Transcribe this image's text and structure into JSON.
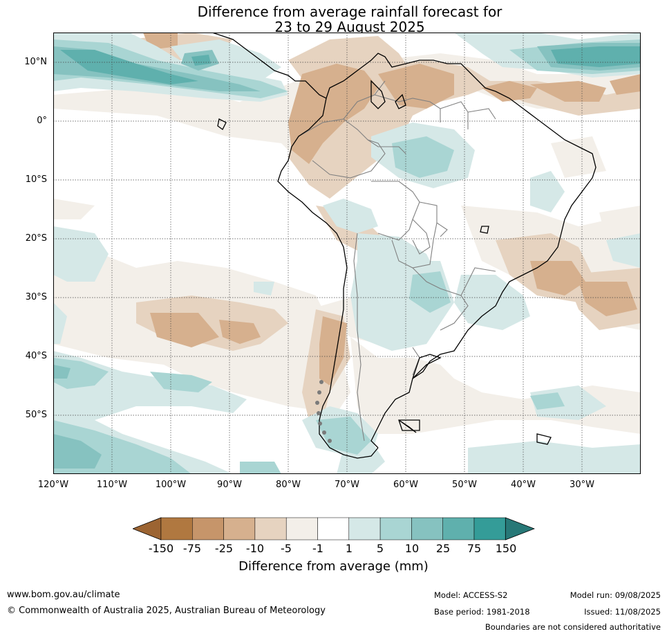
{
  "title": {
    "line1": "Difference from average rainfall forecast for",
    "line2": "23 to 29 August 2025"
  },
  "map": {
    "region": "South America",
    "projection": "equirectangular",
    "lon_range": [
      -120,
      -20
    ],
    "lat_range": [
      -60,
      15
    ],
    "gridlines": true,
    "lat_labels": [
      "10°N",
      "0°",
      "10°S",
      "20°S",
      "30°S",
      "40°S",
      "50°S"
    ],
    "lon_labels": [
      "120°W",
      "110°W",
      "100°W",
      "90°W",
      "80°W",
      "70°W",
      "60°W",
      "50°W",
      "40°W",
      "30°W"
    ]
  },
  "legend": {
    "title": "Difference from average (mm)",
    "tick_labels": [
      "-150",
      "-75",
      "-25",
      "-10",
      "-5",
      "-1",
      "1",
      "5",
      "10",
      "25",
      "75",
      "150"
    ],
    "colors": [
      "#9c6432",
      "#b07840",
      "#c6956a",
      "#d6b08e",
      "#e6d3c0",
      "#f3efe9",
      "#ffffff",
      "#d5e8e7",
      "#a9d5d3",
      "#86c2c0",
      "#5fb0ad",
      "#349c98",
      "#277877"
    ],
    "extend": "both"
  },
  "footer": {
    "website": "www.bom.gov.au/climate",
    "copyright": "© Commonwealth of Australia 2025, Australian Bureau of Meteorology",
    "model": "Model: ACCESS-S2",
    "base_period": "Base period: 1981-2018",
    "model_run": "Model run: 09/08/2025",
    "issued": "Issued: 11/08/2025",
    "disclaimer": "Boundaries are not considered authoritative"
  }
}
